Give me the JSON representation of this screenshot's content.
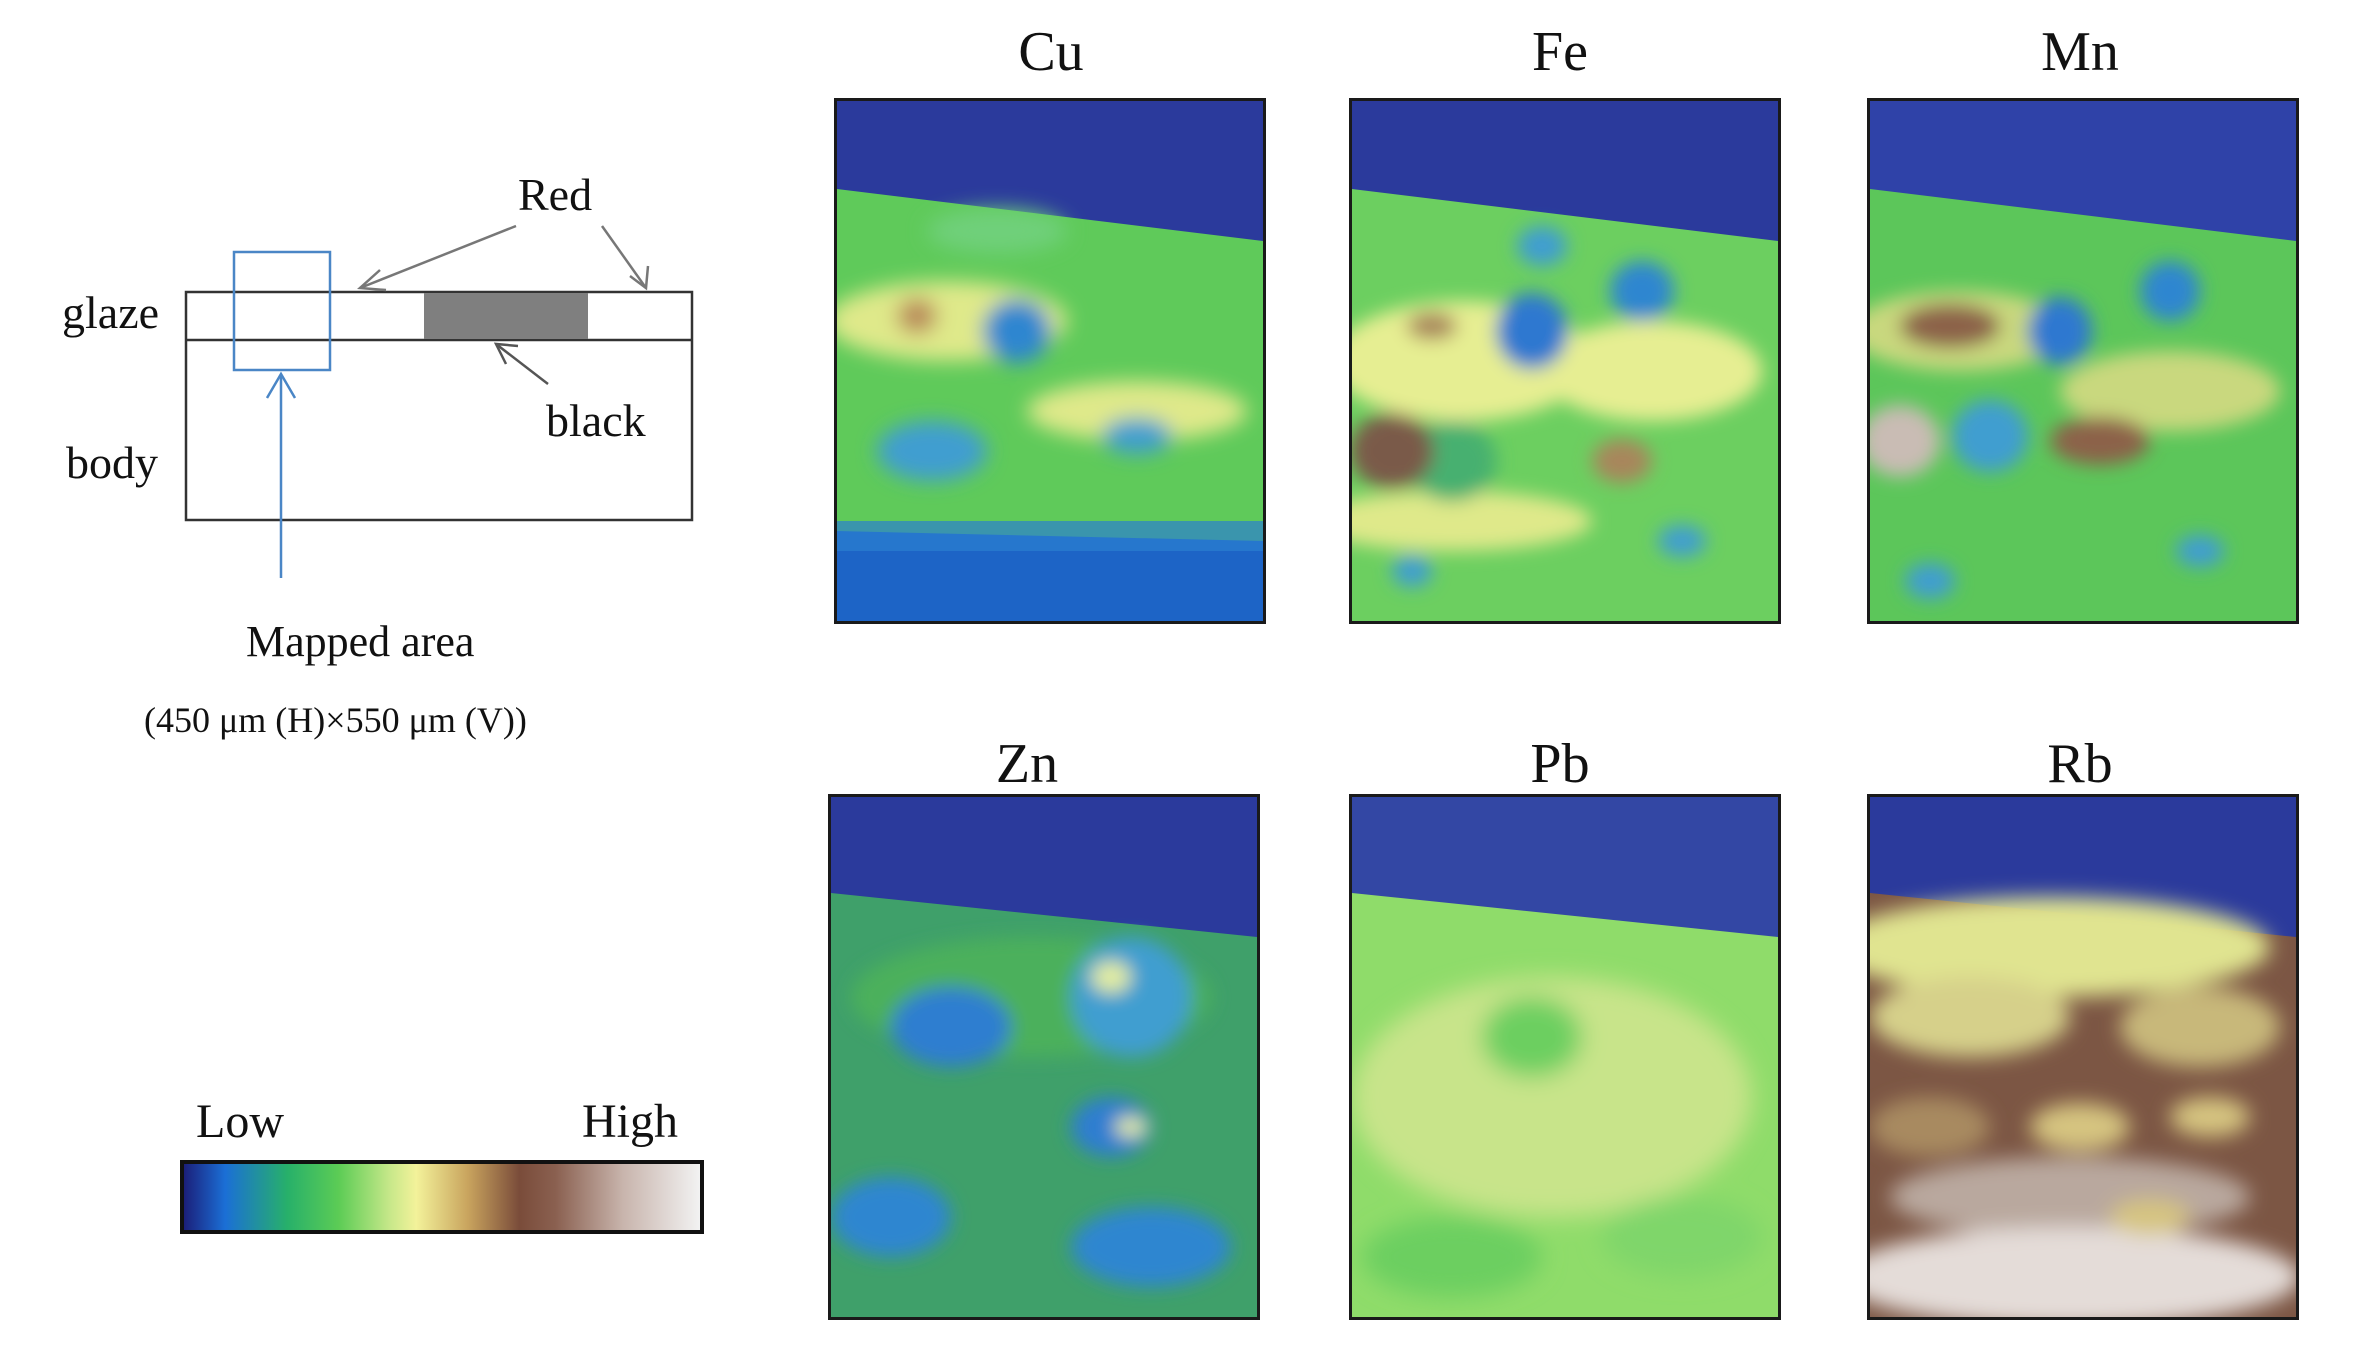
{
  "schematic": {
    "label_red": "Red",
    "label_glaze": "glaze",
    "label_body": "body",
    "label_black": "black",
    "mapped_area_label": "Mapped area",
    "mapped_area_size": "(450 μm (H)×550 μm (V))"
  },
  "legend": {
    "low_label": "Low",
    "high_label": "High"
  },
  "maps": [
    {
      "element": "Cu"
    },
    {
      "element": "Fe"
    },
    {
      "element": "Mn"
    },
    {
      "element": "Zn"
    },
    {
      "element": "Pb"
    },
    {
      "element": "Rb"
    }
  ],
  "colors": {
    "background_dark": "#2a3c9a",
    "frame": "#1a1a1a",
    "mapped_box": "#4a86c6",
    "black_region": "#7f7f7f"
  }
}
